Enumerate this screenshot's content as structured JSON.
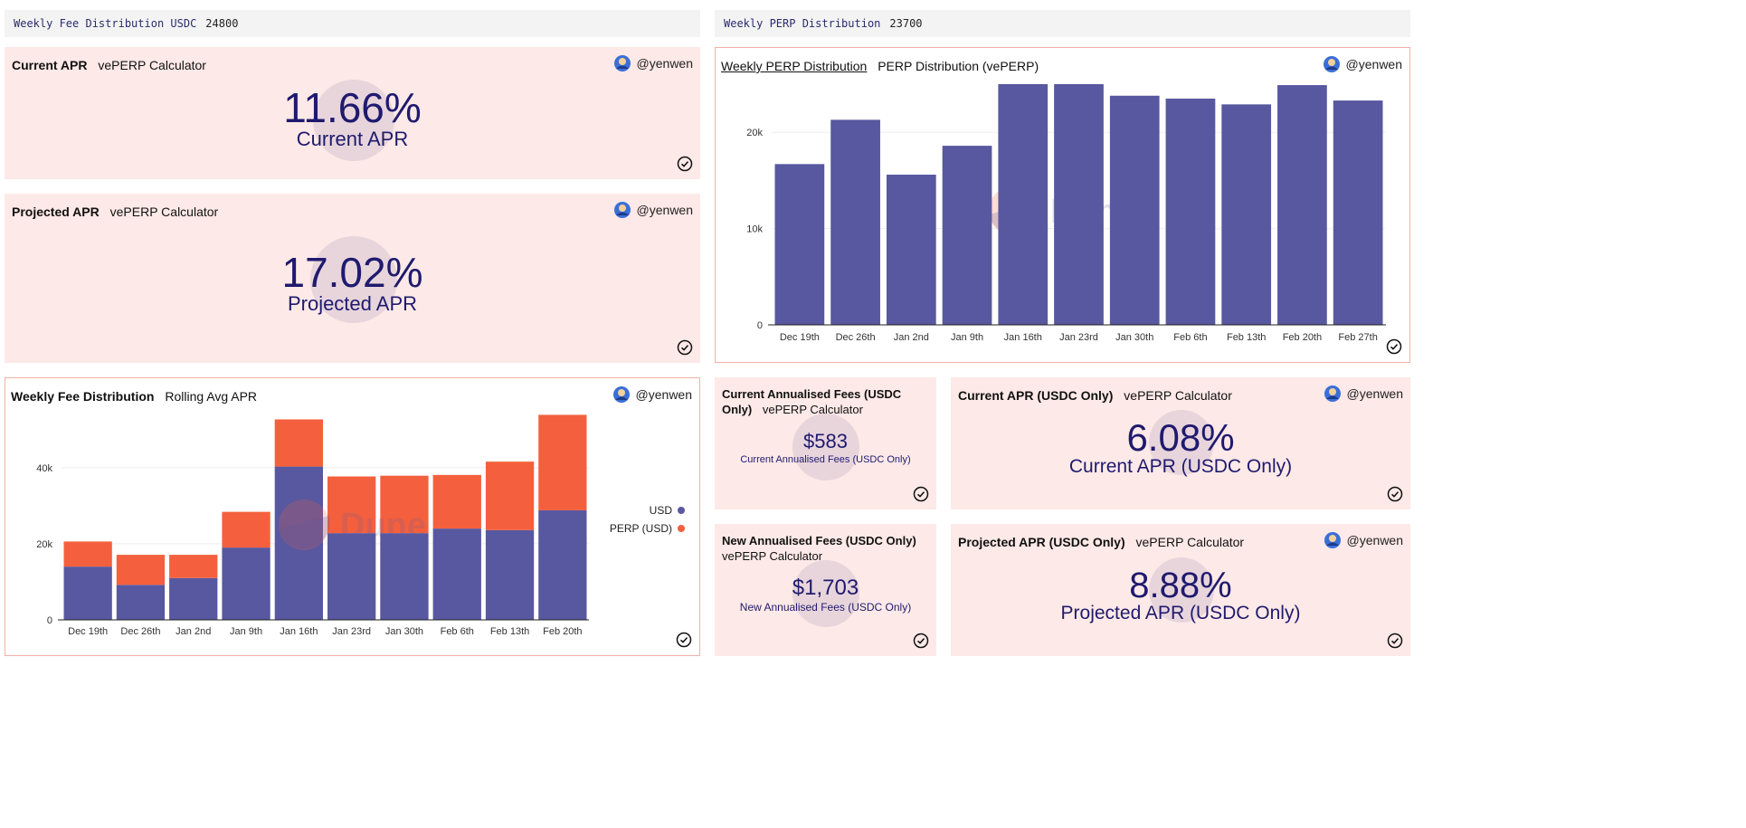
{
  "colors": {
    "usd": "#5858a0",
    "perp": "#f4603d",
    "counter_text": "#1f1a6e",
    "card_bg": "#fde9e7"
  },
  "params": {
    "fee": {
      "label": "Weekly Fee Distribution USDC",
      "value": "24800"
    },
    "perp": {
      "label": "Weekly PERP Distribution",
      "value": "23700"
    }
  },
  "author": "@yenwen",
  "cards": {
    "current_apr": {
      "title": "Current APR",
      "subtitle": "vePERP Calculator",
      "value": "11.66%",
      "label": "Current APR"
    },
    "projected_apr": {
      "title": "Projected APR",
      "subtitle": "vePERP Calculator",
      "value": "17.02%",
      "label": "Projected APR"
    },
    "annual_fees_current": {
      "title": "Current Annualised Fees (USDC Only)",
      "subtitle": "vePERP Calculator",
      "value": "$583",
      "label": "Current Annualised Fees (USDC Only)"
    },
    "apr_usdc_current": {
      "title": "Current APR (USDC Only)",
      "subtitle": "vePERP Calculator",
      "value": "6.08%",
      "label": "Current APR (USDC Only)"
    },
    "annual_fees_new": {
      "title": "New Annualised Fees (USDC Only)",
      "subtitle": "vePERP Calculator",
      "value": "$1,703",
      "label": "New Annualised Fees (USDC Only)"
    },
    "apr_usdc_projected": {
      "title": "Projected APR (USDC Only)",
      "subtitle": "vePERP Calculator",
      "value": "8.88%",
      "label": "Projected APR (USDC Only)"
    }
  },
  "watermark": "Dune",
  "chart_data": [
    {
      "type": "bar",
      "title": "Weekly PERP Distribution",
      "subtitle": "PERP Distribution (vePERP)",
      "categories": [
        "Dec 19th",
        "Dec 26th",
        "Jan 2nd",
        "Jan 9th",
        "Jan 16th",
        "Jan 23rd",
        "Jan 30th",
        "Feb 6th",
        "Feb 13th",
        "Feb 20th",
        "Feb 27th"
      ],
      "values": [
        16700,
        21300,
        15600,
        18600,
        25000,
        25000,
        23800,
        23500,
        22900,
        24900,
        23300
      ],
      "ylim": [
        0,
        25000
      ],
      "yticks": [
        0,
        10000,
        20000
      ],
      "ytick_labels": [
        "0",
        "10k",
        "20k"
      ],
      "grid": true
    },
    {
      "type": "bar",
      "stacked": true,
      "title": "Weekly Fee Distribution",
      "subtitle": "Rolling Avg APR",
      "categories": [
        "Dec 19th",
        "Dec 26th",
        "Jan 2nd",
        "Jan 9th",
        "Jan 16th",
        "Jan 23rd",
        "Jan 30th",
        "Feb 6th",
        "Feb 13th",
        "Feb 20th"
      ],
      "series": [
        {
          "name": "USD",
          "values": [
            14000,
            9200,
            11000,
            19000,
            40300,
            22800,
            22800,
            24000,
            23600,
            28800
          ]
        },
        {
          "name": "PERP (USD)",
          "values": [
            6600,
            7900,
            6100,
            9400,
            12400,
            14900,
            15100,
            14100,
            18000,
            25100
          ]
        }
      ],
      "ylim": [
        0,
        54000
      ],
      "yticks": [
        0,
        20000,
        40000
      ],
      "ytick_labels": [
        "0",
        "20k",
        "40k"
      ],
      "legend_position": "right",
      "grid": true
    }
  ]
}
